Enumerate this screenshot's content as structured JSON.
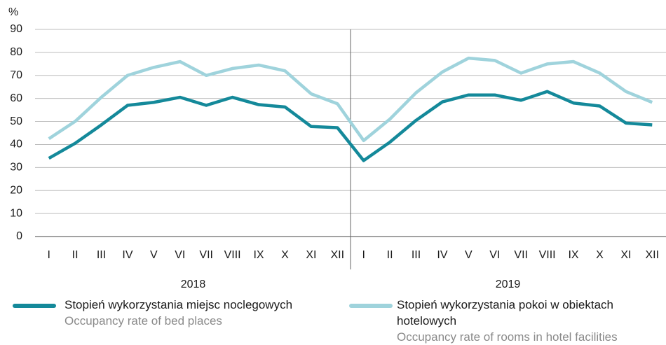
{
  "chart_data": {
    "type": "line",
    "y_unit": "%",
    "categories": [
      "I",
      "II",
      "III",
      "IV",
      "V",
      "VI",
      "VII",
      "VIII",
      "IX",
      "X",
      "XI",
      "XII",
      "I",
      "II",
      "III",
      "IV",
      "V",
      "VI",
      "VII",
      "VIII",
      "IX",
      "X",
      "XI",
      "XII"
    ],
    "x_groups": [
      "2018",
      "2019"
    ],
    "series": [
      {
        "name": "Stopień wykorzystania miejsc noclegowych",
        "subtitle": "Occupancy rate of bed places",
        "color": "#14899a",
        "values": [
          34,
          40.5,
          48.5,
          57,
          58.3,
          60.5,
          57,
          60.5,
          57.3,
          56.3,
          47.8,
          47.3,
          33,
          41,
          50.5,
          58.5,
          61.5,
          61.5,
          59.2,
          63,
          58,
          56.7,
          49.3,
          48.5
        ]
      },
      {
        "name": "Stopień wykorzystania pokoi w obiektach hotelowych",
        "subtitle": "Occupancy rate of rooms in hotel facilities",
        "color": "#9fd3dc",
        "values": [
          42.5,
          50,
          60.5,
          70,
          73.5,
          76,
          70,
          73,
          74.5,
          72,
          62,
          57.7,
          41.7,
          51,
          62.5,
          71.5,
          77.5,
          76.5,
          71,
          75,
          76,
          71,
          63,
          58.3
        ]
      }
    ],
    "ylim": [
      0,
      90
    ],
    "yticks": [
      0,
      10,
      20,
      30,
      40,
      50,
      60,
      70,
      80,
      90
    ],
    "grid": true
  }
}
